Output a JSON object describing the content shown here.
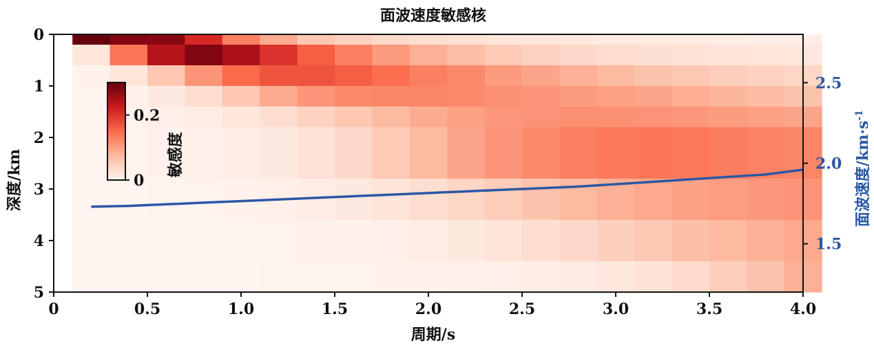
{
  "chart_data": {
    "type": "heatmap",
    "title": "面波速度敏感核",
    "xlabel": "周期/s",
    "ylabel": "深度/km",
    "y2label": "面波速度/km·s",
    "y2label_sup": "-1",
    "xlim": [
      0,
      4.0
    ],
    "ylim": [
      0,
      5
    ],
    "y2lim": [
      1.2,
      2.8
    ],
    "x_ticks": [
      "0",
      "0.5",
      "1.0",
      "1.5",
      "2.0",
      "2.5",
      "3.0",
      "3.5",
      "4.0"
    ],
    "x_tick_values": [
      0,
      0.5,
      1.0,
      1.5,
      2.0,
      2.5,
      3.0,
      3.5,
      4.0
    ],
    "y_ticks": [
      "0",
      "1",
      "2",
      "3",
      "4",
      "5"
    ],
    "y_tick_values": [
      0,
      1,
      2,
      3,
      4,
      5
    ],
    "y2_ticks": [
      "1.5",
      "2.0",
      "2.5"
    ],
    "y2_tick_values": [
      1.5,
      2.0,
      2.5
    ],
    "colorbar": {
      "label": "敏感度",
      "ticks": [
        "0",
        "0.2"
      ],
      "tick_values": [
        0,
        0.2
      ],
      "range": [
        0,
        0.3
      ],
      "colormap": "Reds"
    },
    "periods": [
      0.2,
      0.4,
      0.6,
      0.8,
      1.0,
      1.2,
      1.4,
      1.6,
      1.8,
      2.0,
      2.2,
      2.4,
      2.6,
      2.8,
      3.0,
      3.2,
      3.4,
      3.6,
      3.8,
      4.0
    ],
    "depth_edges": [
      0,
      0.2,
      0.6,
      1.0,
      1.4,
      1.8,
      2.8,
      3.6,
      4.4,
      5.0
    ],
    "sensitivity": [
      [
        0.3,
        0.28,
        0.275,
        0.21,
        0.13,
        0.09,
        0.06,
        0.045,
        0.035,
        0.03,
        0.025,
        0.02,
        0.018,
        0.016,
        0.014,
        0.012,
        0.011,
        0.01,
        0.009,
        0.009
      ],
      [
        0.02,
        0.14,
        0.24,
        0.28,
        0.25,
        0.2,
        0.16,
        0.13,
        0.105,
        0.085,
        0.07,
        0.055,
        0.045,
        0.038,
        0.032,
        0.028,
        0.025,
        0.022,
        0.02,
        0.018
      ],
      [
        0.005,
        0.02,
        0.06,
        0.11,
        0.15,
        0.17,
        0.17,
        0.16,
        0.145,
        0.13,
        0.12,
        0.105,
        0.095,
        0.085,
        0.075,
        0.065,
        0.058,
        0.05,
        0.045,
        0.04
      ],
      [
        0.002,
        0.005,
        0.015,
        0.03,
        0.06,
        0.09,
        0.11,
        0.12,
        0.125,
        0.125,
        0.12,
        0.115,
        0.11,
        0.105,
        0.1,
        0.095,
        0.088,
        0.08,
        0.072,
        0.065
      ],
      [
        0.001,
        0.003,
        0.008,
        0.012,
        0.02,
        0.03,
        0.045,
        0.06,
        0.075,
        0.09,
        0.1,
        0.108,
        0.112,
        0.115,
        0.115,
        0.112,
        0.108,
        0.104,
        0.1,
        0.095
      ],
      [
        0.001,
        0.002,
        0.004,
        0.006,
        0.01,
        0.015,
        0.025,
        0.038,
        0.055,
        0.075,
        0.095,
        0.11,
        0.12,
        0.13,
        0.135,
        0.138,
        0.136,
        0.132,
        0.128,
        0.125
      ],
      [
        0.001,
        0.001,
        0.002,
        0.003,
        0.004,
        0.006,
        0.01,
        0.015,
        0.022,
        0.03,
        0.04,
        0.052,
        0.065,
        0.075,
        0.085,
        0.092,
        0.098,
        0.103,
        0.108,
        0.112
      ],
      [
        0.001,
        0.001,
        0.001,
        0.002,
        0.002,
        0.003,
        0.004,
        0.006,
        0.008,
        0.012,
        0.016,
        0.022,
        0.03,
        0.038,
        0.048,
        0.058,
        0.068,
        0.076,
        0.085,
        0.092
      ],
      [
        0.001,
        0.001,
        0.001,
        0.001,
        0.001,
        0.002,
        0.002,
        0.003,
        0.004,
        0.005,
        0.006,
        0.008,
        0.01,
        0.013,
        0.018,
        0.025,
        0.035,
        0.05,
        0.065,
        0.085
      ]
    ],
    "velocity_curve": {
      "color": "#2a57a5",
      "x": [
        0.2,
        0.4,
        0.6,
        0.8,
        1.0,
        1.2,
        1.4,
        1.6,
        1.8,
        2.0,
        2.2,
        2.4,
        2.6,
        2.8,
        3.0,
        3.2,
        3.4,
        3.6,
        3.8,
        4.0
      ],
      "y": [
        1.73,
        1.735,
        1.745,
        1.755,
        1.765,
        1.775,
        1.785,
        1.795,
        1.805,
        1.815,
        1.825,
        1.835,
        1.845,
        1.855,
        1.87,
        1.885,
        1.9,
        1.915,
        1.93,
        1.96
      ]
    }
  }
}
